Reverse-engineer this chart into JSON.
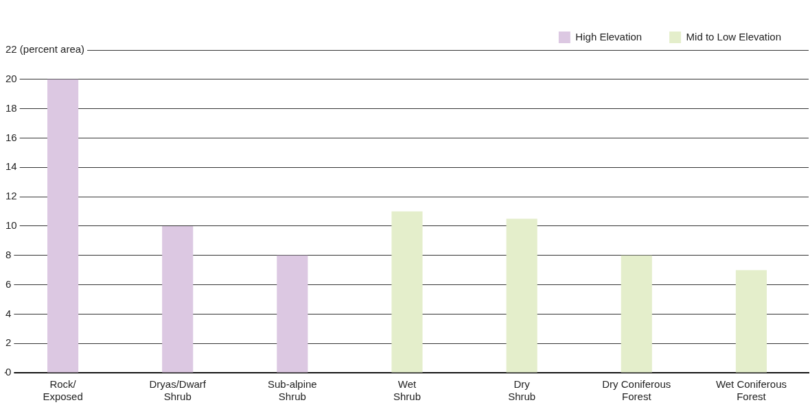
{
  "chart_data": {
    "type": "bar",
    "categories": [
      "Rock/\nExposed",
      "Dryas/Dwarf\nShrub",
      "Sub-alpine\nShrub",
      "Wet\nShrub",
      "Dry\nShrub",
      "Dry Coniferous\nForest",
      "Wet Coniferous\nForest"
    ],
    "series": [
      {
        "name": "High Elevation",
        "color": "#dcc8e2",
        "values": [
          20,
          10,
          8,
          null,
          null,
          null,
          null
        ]
      },
      {
        "name": "Mid to Low Elevation",
        "color": "#e4eecb",
        "values": [
          null,
          null,
          null,
          11,
          10.5,
          8,
          7
        ]
      }
    ],
    "ylim": [
      0,
      22
    ],
    "yticks": [
      0,
      2,
      4,
      6,
      8,
      10,
      12,
      14,
      16,
      18,
      20,
      {
        "value": 22,
        "label": "22 (percent area)"
      }
    ],
    "grid": "y",
    "legend": "top right"
  }
}
